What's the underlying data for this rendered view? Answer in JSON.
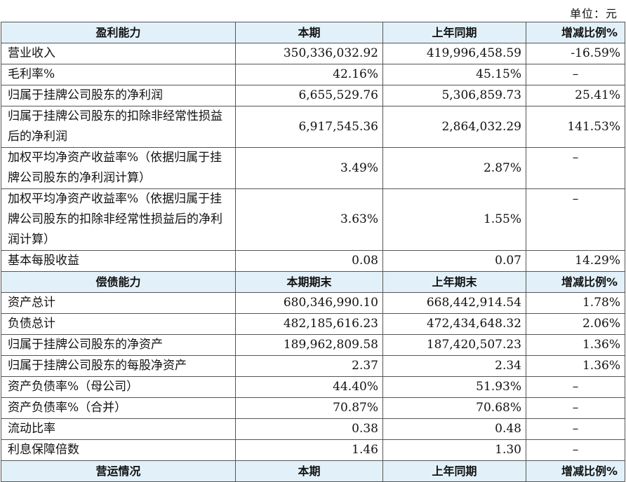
{
  "unit_label": "单位：元",
  "sections": [
    {
      "header": [
        "盈利能力",
        "本期",
        "上年同期",
        "增减比例%"
      ],
      "rows": [
        {
          "label": "营业收入",
          "current": "350,336,032.92",
          "prior": "419,996,458.59",
          "change": "-16.59%"
        },
        {
          "label": "毛利率%",
          "current": "42.16%",
          "prior": "45.15%",
          "change": "–"
        },
        {
          "label": "归属于挂牌公司股东的净利润",
          "current": "6,655,529.76",
          "prior": "5,306,859.73",
          "change": "25.41%"
        },
        {
          "label": "归属于挂牌公司股东的扣除非经常性损益后的净利润",
          "current": "6,917,545.36",
          "prior": "2,864,032.29",
          "change": "141.53%"
        },
        {
          "label": "加权平均净资产收益率%（依据归属于挂牌公司股东的净利润计算）",
          "current": "3.49%",
          "prior": "2.87%",
          "change": "–"
        },
        {
          "label": "加权平均净资产收益率%（依据归属于挂牌公司股东的扣除非经常性损益后的净利润计算）",
          "current": "3.63%",
          "prior": "1.55%",
          "change": "–"
        },
        {
          "label": "基本每股收益",
          "current": "0.08",
          "prior": "0.07",
          "change": "14.29%"
        }
      ]
    },
    {
      "header": [
        "偿债能力",
        "本期期末",
        "上年期末",
        "增减比例%"
      ],
      "rows": [
        {
          "label": "资产总计",
          "current": "680,346,990.10",
          "prior": "668,442,914.54",
          "change": "1.78%"
        },
        {
          "label": "负债总计",
          "current": "482,185,616.23",
          "prior": "472,434,648.32",
          "change": "2.06%"
        },
        {
          "label": "归属于挂牌公司股东的净资产",
          "current": "189,962,809.58",
          "prior": "187,420,507.23",
          "change": "1.36%"
        },
        {
          "label": "归属于挂牌公司股东的每股净资产",
          "current": "2.37",
          "prior": "2.34",
          "change": "1.36%"
        },
        {
          "label": "资产负债率%（母公司）",
          "current": "44.40%",
          "prior": "51.93%",
          "change": "–"
        },
        {
          "label": "资产负债率%（合并）",
          "current": "70.87%",
          "prior": "70.68%",
          "change": "–"
        },
        {
          "label": "流动比率",
          "current": "0.38",
          "prior": "0.48",
          "change": "–"
        },
        {
          "label": "利息保障倍数",
          "current": "1.46",
          "prior": "1.30",
          "change": "–"
        }
      ]
    },
    {
      "header": [
        "营运情况",
        "本期",
        "上年同期",
        "增减比例%"
      ],
      "rows": []
    }
  ]
}
